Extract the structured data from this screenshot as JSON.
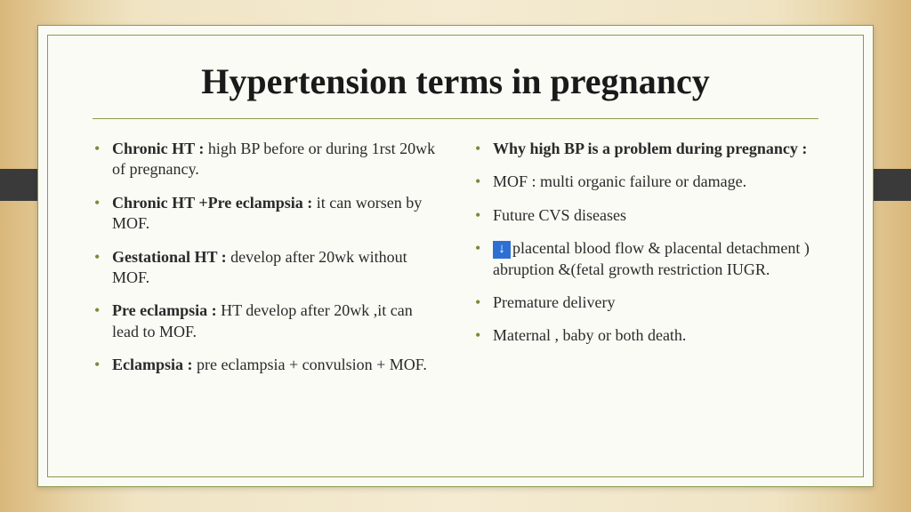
{
  "title": "Hypertension terms in pregnancy",
  "left": [
    {
      "bold": "Chronic HT : ",
      "text": "high BP before or during 1rst 20wk of pregnancy."
    },
    {
      "bold": "Chronic HT +Pre eclampsia : ",
      "text": "it can worsen by MOF."
    },
    {
      "bold": "Gestational HT : ",
      "text": "develop after 20wk without MOF."
    },
    {
      "bold": "Pre eclampsia : ",
      "text": "HT develop after 20wk ,it can lead to MOF."
    },
    {
      "bold": "Eclampsia : ",
      "text": "pre eclampsia + convulsion + MOF."
    }
  ],
  "right": [
    {
      "bold": "Why high BP is a problem during pregnancy :",
      "text": ""
    },
    {
      "bold": "",
      "text": "MOF : multi organic failure or damage."
    },
    {
      "bold": "",
      "text": "Future CVS diseases"
    },
    {
      "bold": "",
      "arrow": true,
      "text": "placental blood flow & placental detachment ) abruption   &(fetal  growth restriction IUGR."
    },
    {
      "bold": "",
      "text": "Premature delivery"
    },
    {
      "bold": "",
      "text": "Maternal , baby or both death."
    }
  ],
  "colors": {
    "bullet": "#7a8a3a",
    "border": "#8a9a4a",
    "card": "#fbfbf5",
    "arrow_bg": "#2e6fd4"
  }
}
